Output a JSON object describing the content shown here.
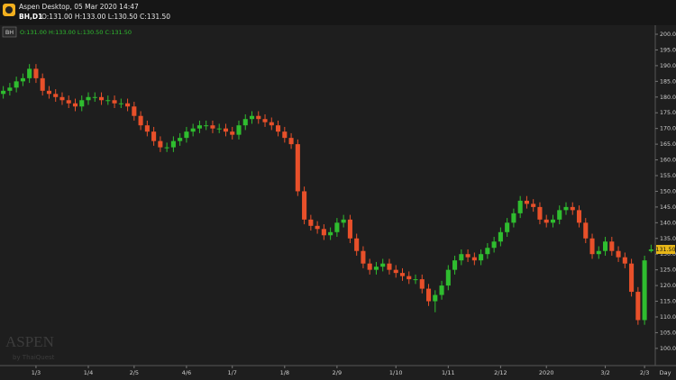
{
  "header": {
    "title": "Aspen Desktop, 05 Mar 2020 14:47",
    "symbol": "BH,D1",
    "ohlc": "O:131.00 H:133.00 L:130.50 C:131.50"
  },
  "legend": {
    "symbol": "BH",
    "ohlc": "O:131.00 H:133.00 L:130.50 C:131.50"
  },
  "watermark": {
    "brand": "ASPEN",
    "by": "by ThaiQuest"
  },
  "chart_data": {
    "type": "candlestick",
    "categories": [
      null,
      null,
      null,
      null,
      null,
      "1/3",
      null,
      null,
      null,
      null,
      null,
      null,
      null,
      "1/4",
      null,
      null,
      null,
      null,
      null,
      null,
      "2/5",
      null,
      null,
      null,
      null,
      null,
      null,
      null,
      "4/6",
      null,
      null,
      null,
      null,
      null,
      null,
      "1/7",
      null,
      null,
      null,
      null,
      null,
      null,
      null,
      "1/8",
      null,
      null,
      null,
      null,
      null,
      null,
      null,
      "2/9",
      null,
      null,
      null,
      null,
      null,
      null,
      null,
      null,
      "1/10",
      null,
      null,
      null,
      null,
      null,
      null,
      null,
      "1/11",
      null,
      null,
      null,
      null,
      null,
      null,
      null,
      "2/12",
      null,
      null,
      null,
      null,
      null,
      null,
      "2020",
      null,
      null,
      null,
      null,
      null,
      null,
      null,
      null,
      "3/2",
      null,
      null,
      null,
      null,
      null,
      "2/3",
      null
    ],
    "open": [
      181,
      182,
      183,
      185,
      186,
      189,
      186,
      182,
      181,
      180,
      179,
      178,
      177,
      179,
      180,
      180,
      179,
      179,
      178,
      178,
      177,
      174,
      171,
      169,
      166,
      164,
      164,
      166,
      167,
      169,
      170,
      171,
      171,
      170,
      170,
      169,
      168,
      171,
      173,
      174,
      173,
      172,
      171,
      169,
      167,
      165,
      150,
      141,
      139,
      138,
      136,
      137,
      140,
      141,
      135,
      131,
      127,
      125,
      126,
      127,
      125,
      124,
      123,
      122,
      122,
      119,
      115,
      117,
      120,
      125,
      128,
      130,
      129,
      128,
      130,
      132,
      134,
      137,
      140,
      143,
      147,
      146,
      145,
      141,
      140,
      141,
      144,
      145,
      144,
      140,
      135,
      130,
      131,
      134,
      131,
      129,
      127,
      118,
      109,
      131
    ],
    "high": [
      183.5,
      184.5,
      186.5,
      187.5,
      190.5,
      190.5,
      187.5,
      183.5,
      182.5,
      181.5,
      180.5,
      179.5,
      180.5,
      181.5,
      181.5,
      181.5,
      180.5,
      180.5,
      179.5,
      179.5,
      178.5,
      175.5,
      172.5,
      170.5,
      167.5,
      165.5,
      167.5,
      168.5,
      170.5,
      171.5,
      172.5,
      172.5,
      172.5,
      171.5,
      171.5,
      170.5,
      172.5,
      174.5,
      175.5,
      175.5,
      174.5,
      173.5,
      172.5,
      170.5,
      168.5,
      166.5,
      151.5,
      142.5,
      140.5,
      139.5,
      138.5,
      141.5,
      142.5,
      142.5,
      136.5,
      132.5,
      128.5,
      127.5,
      128.5,
      128.5,
      126.5,
      125.5,
      124.5,
      123.5,
      123.5,
      120.5,
      118.5,
      121.5,
      126.5,
      129.5,
      131.5,
      131.5,
      130.5,
      131.5,
      133.5,
      135.5,
      138.5,
      141.5,
      144.5,
      148.5,
      148.5,
      147.5,
      146.5,
      142.5,
      142.5,
      145.5,
      146.5,
      146.5,
      145.5,
      141.5,
      136.5,
      132.5,
      135.5,
      135.5,
      132.5,
      130.5,
      128.5,
      119.5,
      129.5,
      133
    ],
    "low": [
      179.5,
      180.5,
      181.5,
      183.5,
      184.5,
      184.5,
      180.5,
      179.5,
      178.5,
      177.5,
      176.5,
      175.5,
      175.5,
      177.5,
      178.5,
      177.5,
      177.5,
      176.5,
      176.5,
      175.5,
      172.5,
      169.5,
      167.5,
      164.5,
      162.5,
      162.5,
      162.5,
      164.5,
      165.5,
      167.5,
      168.5,
      169.5,
      168.5,
      168.5,
      167.5,
      166.5,
      166.5,
      169.5,
      171.5,
      171.5,
      170.5,
      169.5,
      167.5,
      165.5,
      163.5,
      148.5,
      139.5,
      137.5,
      136.5,
      134.5,
      134.5,
      135.5,
      138.5,
      133.5,
      129.5,
      125.5,
      123.5,
      123.5,
      124.5,
      123.5,
      122.5,
      121.5,
      120.5,
      120.5,
      117.5,
      113.5,
      111.5,
      115.5,
      118.5,
      123.5,
      126.5,
      127.5,
      126.5,
      126.5,
      128.5,
      130.5,
      132.5,
      135.5,
      138.5,
      141.5,
      144.5,
      143.5,
      139.5,
      138.5,
      138.5,
      139.5,
      142.5,
      142.5,
      138.5,
      133.5,
      128.5,
      128.5,
      129.5,
      129.5,
      127.5,
      125.5,
      116.5,
      107.5,
      107.5,
      130.5
    ],
    "close": [
      182,
      183,
      185,
      186,
      189,
      186,
      182,
      181,
      180,
      179,
      178,
      177,
      179,
      180,
      180,
      179,
      179,
      178,
      178,
      177,
      174,
      171,
      169,
      166,
      164,
      164,
      166,
      167,
      169,
      170,
      171,
      171,
      170,
      170,
      169,
      168,
      171,
      173,
      174,
      173,
      172,
      171,
      169,
      167,
      165,
      150,
      141,
      139,
      138,
      136,
      137,
      140,
      141,
      135,
      131,
      127,
      125,
      126,
      127,
      125,
      124,
      123,
      122,
      122,
      119,
      115,
      117,
      120,
      125,
      128,
      130,
      129,
      128,
      130,
      132,
      134,
      137,
      140,
      143,
      147,
      146,
      145,
      141,
      140,
      141,
      144,
      145,
      144,
      140,
      135,
      130,
      131,
      134,
      131,
      129,
      127,
      118,
      109,
      128,
      131.5
    ],
    "up_color": "#2fbd2f",
    "down_color": "#e8502a",
    "last_price_label": "131.50",
    "x_unit": "Day",
    "ylim": [
      94.8,
      202.3
    ],
    "yticks": [
      {
        "value": 100,
        "label": "100.00"
      },
      {
        "value": 105,
        "label": "105.00"
      },
      {
        "value": 110,
        "label": "110.00"
      },
      {
        "value": 115,
        "label": "115.00"
      },
      {
        "value": 120,
        "label": "120.00"
      },
      {
        "value": 125,
        "label": "125.00"
      },
      {
        "value": 130,
        "label": "130.00"
      },
      {
        "value": 135,
        "label": "135.00"
      },
      {
        "value": 140,
        "label": "140.00"
      },
      {
        "value": 145,
        "label": "145.00"
      },
      {
        "value": 150,
        "label": "150.00"
      },
      {
        "value": 155,
        "label": "155.00"
      },
      {
        "value": 160,
        "label": "160.00"
      },
      {
        "value": 165,
        "label": "165.00"
      },
      {
        "value": 170,
        "label": "170.00"
      },
      {
        "value": 175,
        "label": "175.00"
      },
      {
        "value": 180,
        "label": "180.00"
      },
      {
        "value": 185,
        "label": "185.00"
      },
      {
        "value": 190,
        "label": "190.00"
      },
      {
        "value": 195,
        "label": "195.00"
      },
      {
        "value": 200,
        "label": "200.00"
      }
    ],
    "grid": false
  }
}
